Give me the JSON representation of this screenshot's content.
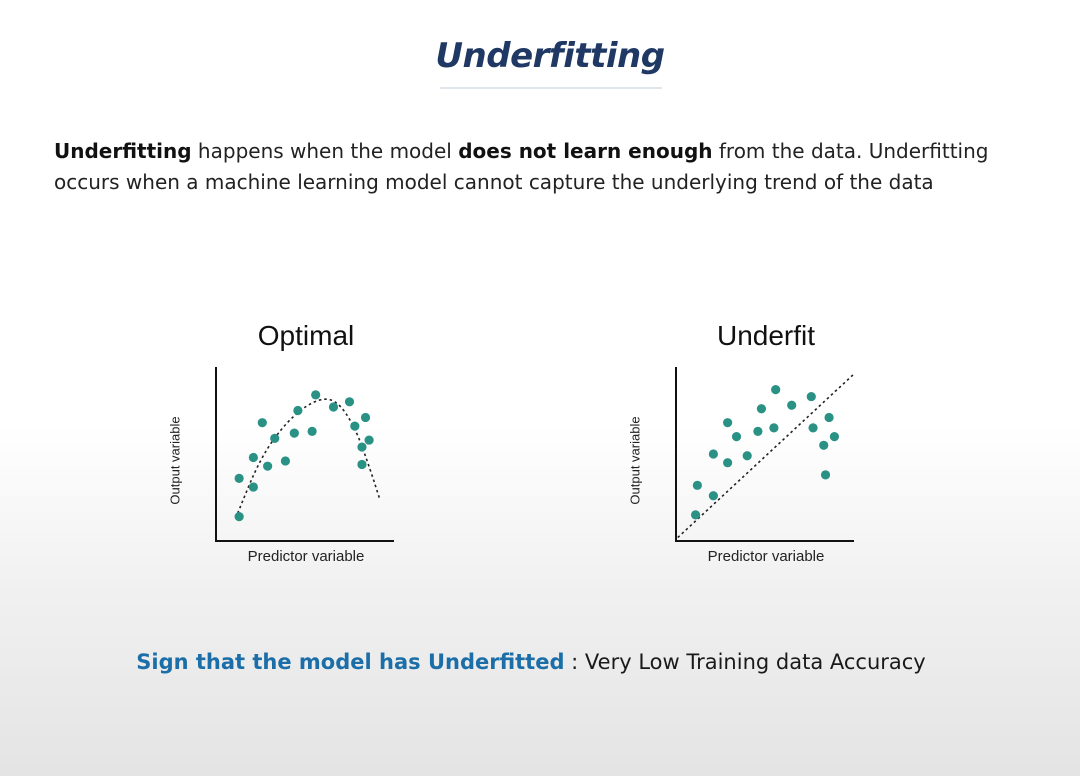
{
  "title": "Underfitting",
  "description": {
    "term": "Underfitting",
    "text1": " happens when the model ",
    "emph": "does not learn enough",
    "text2": " from the data. Underfitting occurs when a machine learning model cannot capture the underlying trend of the data"
  },
  "sign": {
    "label": "Sign that the model has Underfitted",
    "value": " : Very Low Training data Accuracy"
  },
  "colors": {
    "title": "#1f3864",
    "highlight": "#1b6ea8",
    "points": "#2a9185"
  },
  "chart_data": [
    {
      "type": "scatter",
      "title": "Optimal",
      "xlabel": "Predictor variable",
      "ylabel": "Output variable",
      "xlim": [
        0,
        10
      ],
      "ylim": [
        0,
        10
      ],
      "points": [
        [
          1.3,
          1.4
        ],
        [
          1.3,
          3.6
        ],
        [
          2.1,
          3.1
        ],
        [
          2.1,
          4.8
        ],
        [
          2.6,
          6.8
        ],
        [
          2.9,
          4.3
        ],
        [
          3.3,
          5.9
        ],
        [
          3.9,
          4.6
        ],
        [
          4.4,
          6.2
        ],
        [
          4.6,
          7.5
        ],
        [
          5.4,
          6.3
        ],
        [
          5.6,
          8.4
        ],
        [
          6.6,
          7.7
        ],
        [
          7.5,
          8.0
        ],
        [
          7.8,
          6.6
        ],
        [
          8.2,
          4.4
        ],
        [
          8.2,
          5.4
        ],
        [
          8.4,
          7.1
        ],
        [
          8.6,
          5.8
        ]
      ],
      "fit": {
        "style": "dashed",
        "shape": "curve",
        "x": [
          1.1,
          2.5,
          4.0,
          5.5,
          6.7,
          7.8,
          8.7,
          9.2
        ],
        "y": [
          1.3,
          4.8,
          6.9,
          8.1,
          8.2,
          6.6,
          4.0,
          2.4
        ]
      }
    },
    {
      "type": "scatter",
      "title": "Underfit",
      "xlabel": "Predictor variable",
      "ylabel": "Output variable",
      "xlim": [
        0,
        10
      ],
      "ylim": [
        0,
        10
      ],
      "points": [
        [
          1.1,
          1.5
        ],
        [
          1.2,
          3.2
        ],
        [
          2.1,
          2.6
        ],
        [
          2.1,
          5.0
        ],
        [
          2.9,
          4.5
        ],
        [
          2.9,
          6.8
        ],
        [
          3.4,
          6.0
        ],
        [
          4.0,
          4.9
        ],
        [
          4.6,
          6.3
        ],
        [
          4.8,
          7.6
        ],
        [
          5.5,
          6.5
        ],
        [
          5.6,
          8.7
        ],
        [
          6.5,
          7.8
        ],
        [
          7.6,
          8.3
        ],
        [
          7.7,
          6.5
        ],
        [
          8.3,
          5.5
        ],
        [
          8.4,
          3.8
        ],
        [
          8.6,
          7.1
        ],
        [
          8.9,
          6.0
        ]
      ],
      "fit": {
        "style": "dashed",
        "shape": "line",
        "x": [
          0.1,
          10.0
        ],
        "y": [
          0.2,
          9.6
        ]
      }
    }
  ]
}
